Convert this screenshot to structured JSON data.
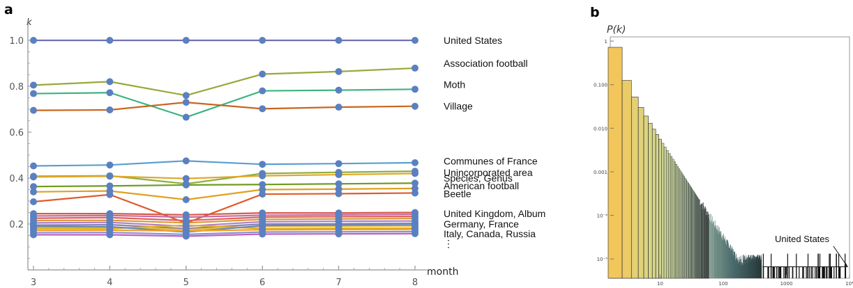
{
  "panels": [
    {
      "letter": "a",
      "type": "line",
      "ylabel": "k",
      "xlabel": "month",
      "x": [
        3,
        4,
        5,
        6,
        7,
        8
      ],
      "ylim": [
        0.0,
        1.05
      ],
      "xticks": [
        "3",
        "4",
        "5",
        "6",
        "7",
        "8"
      ],
      "yticks": [
        "0.2",
        "0.4",
        "0.6",
        "0.8",
        "1.0"
      ],
      "ytick_values": [
        0.2,
        0.4,
        0.6,
        0.8,
        1.0
      ],
      "grid": false,
      "series": [
        {
          "values": [
            1.0,
            1.0,
            1.0,
            1.0,
            1.0,
            1.0
          ],
          "color": "#6f6fb5"
        },
        {
          "values": [
            0.805,
            0.82,
            0.76,
            0.853,
            0.864,
            0.879
          ],
          "color": "#98a83a"
        },
        {
          "values": [
            0.768,
            0.772,
            0.665,
            0.78,
            0.783,
            0.787
          ],
          "color": "#3fb380"
        },
        {
          "values": [
            0.695,
            0.697,
            0.73,
            0.702,
            0.709,
            0.713
          ],
          "color": "#c9651e"
        },
        {
          "values": [
            0.453,
            0.457,
            0.475,
            0.46,
            0.463,
            0.467
          ],
          "color": "#5b9fd0"
        },
        {
          "values": [
            0.408,
            0.41,
            0.375,
            0.42,
            0.425,
            0.43
          ],
          "color": "#8fae3e"
        },
        {
          "values": [
            0.405,
            0.408,
            0.398,
            0.41,
            0.415,
            0.42
          ],
          "color": "#e0a82a"
        },
        {
          "values": [
            0.363,
            0.366,
            0.37,
            0.372,
            0.375,
            0.378
          ],
          "color": "#6f9b1f"
        },
        {
          "values": [
            0.34,
            0.344,
            0.306,
            0.35,
            0.352,
            0.355
          ],
          "color": "#e0a020"
        },
        {
          "values": [
            0.297,
            0.328,
            0.204,
            0.33,
            0.332,
            0.335
          ],
          "color": "#e05a2a"
        },
        {
          "values": [
            0.245,
            0.245,
            0.24,
            0.248,
            0.248,
            0.25
          ],
          "color": "#d9584c"
        },
        {
          "values": [
            0.235,
            0.237,
            0.23,
            0.238,
            0.24,
            0.242
          ],
          "color": "#c06fa0"
        },
        {
          "values": [
            0.225,
            0.228,
            0.215,
            0.23,
            0.232,
            0.233
          ],
          "color": "#e06060"
        },
        {
          "values": [
            0.215,
            0.216,
            0.205,
            0.22,
            0.222,
            0.224
          ],
          "color": "#d99a3a"
        },
        {
          "values": [
            0.205,
            0.207,
            0.19,
            0.21,
            0.212,
            0.213
          ],
          "color": "#b07ec0"
        },
        {
          "values": [
            0.195,
            0.197,
            0.18,
            0.2,
            0.201,
            0.203
          ],
          "color": "#8a7fc0"
        },
        {
          "values": [
            0.185,
            0.186,
            0.175,
            0.19,
            0.19,
            0.192
          ],
          "color": "#f0c030"
        },
        {
          "values": [
            0.18,
            0.18,
            0.195,
            0.18,
            0.181,
            0.182
          ],
          "color": "#e0b020"
        },
        {
          "values": [
            0.19,
            0.188,
            0.165,
            0.193,
            0.195,
            0.196
          ],
          "color": "#6a8aa8"
        },
        {
          "values": [
            0.172,
            0.173,
            0.17,
            0.175,
            0.176,
            0.177
          ],
          "color": "#f0a030"
        },
        {
          "values": [
            0.162,
            0.163,
            0.155,
            0.165,
            0.166,
            0.167
          ],
          "color": "#8a90d0"
        },
        {
          "values": [
            0.153,
            0.153,
            0.147,
            0.156,
            0.157,
            0.158
          ],
          "color": "#c060c0"
        }
      ],
      "marker_color": "#5b80c0",
      "labels": [
        {
          "text": "United States",
          "y": 1.0
        },
        {
          "text": "Association football",
          "y": 0.9
        },
        {
          "text": "Moth",
          "y": 0.808
        },
        {
          "text": "Village",
          "y": 0.713
        },
        {
          "text": "Communes of France",
          "y": 0.475
        },
        {
          "text": "Unincorporated area",
          "y": 0.425
        },
        {
          "text": "Species, Genus",
          "y": 0.4
        },
        {
          "text": "American football",
          "y": 0.366
        },
        {
          "text": "Beetle",
          "y": 0.332
        },
        {
          "text": "United Kingdom, Album",
          "y": 0.245
        },
        {
          "text": "Germany, France",
          "y": 0.2
        },
        {
          "text": "Italy, Canada, Russia",
          "y": 0.158
        },
        {
          "text": "⋮",
          "y": 0.115
        }
      ]
    },
    {
      "letter": "b",
      "type": "bar",
      "ylabel": "P(k)",
      "x_scale": "log",
      "y_scale": "log",
      "xlim": [
        1,
        10000
      ],
      "ylim": [
        3.6e-06,
        1.25
      ],
      "xticks": [
        "10",
        "100",
        "1000",
        "10⁴"
      ],
      "xtick_values": [
        10,
        100,
        1000,
        10000
      ],
      "yticks": [
        "1",
        "0.100",
        "0.010",
        "0.001",
        "10⁻⁴",
        "10⁻⁵"
      ],
      "ytick_values": [
        1,
        0.1,
        0.01,
        0.001,
        0.0001,
        1e-05
      ],
      "annotation": "United States",
      "annotation_k": 9400,
      "annotation_p": 6.5e-06,
      "color_gradient": [
        "#f2c65a",
        "#d6d88c",
        "#9fb7a2",
        "#4b6b6c",
        "#1a2628"
      ],
      "top_bars": [
        {
          "k": 2,
          "p": 0.72
        },
        {
          "k": 3,
          "p": 0.125
        },
        {
          "k": 4,
          "p": 0.052
        },
        {
          "k": 5,
          "p": 0.03
        },
        {
          "k": 6,
          "p": 0.019
        },
        {
          "k": 7,
          "p": 0.013
        },
        {
          "k": 8,
          "p": 0.0095
        },
        {
          "k": 9,
          "p": 0.0072
        },
        {
          "k": 10,
          "p": 0.0056
        }
      ],
      "tail_exponent": -2.25,
      "tail_floor_p": 6.6e-06
    }
  ]
}
